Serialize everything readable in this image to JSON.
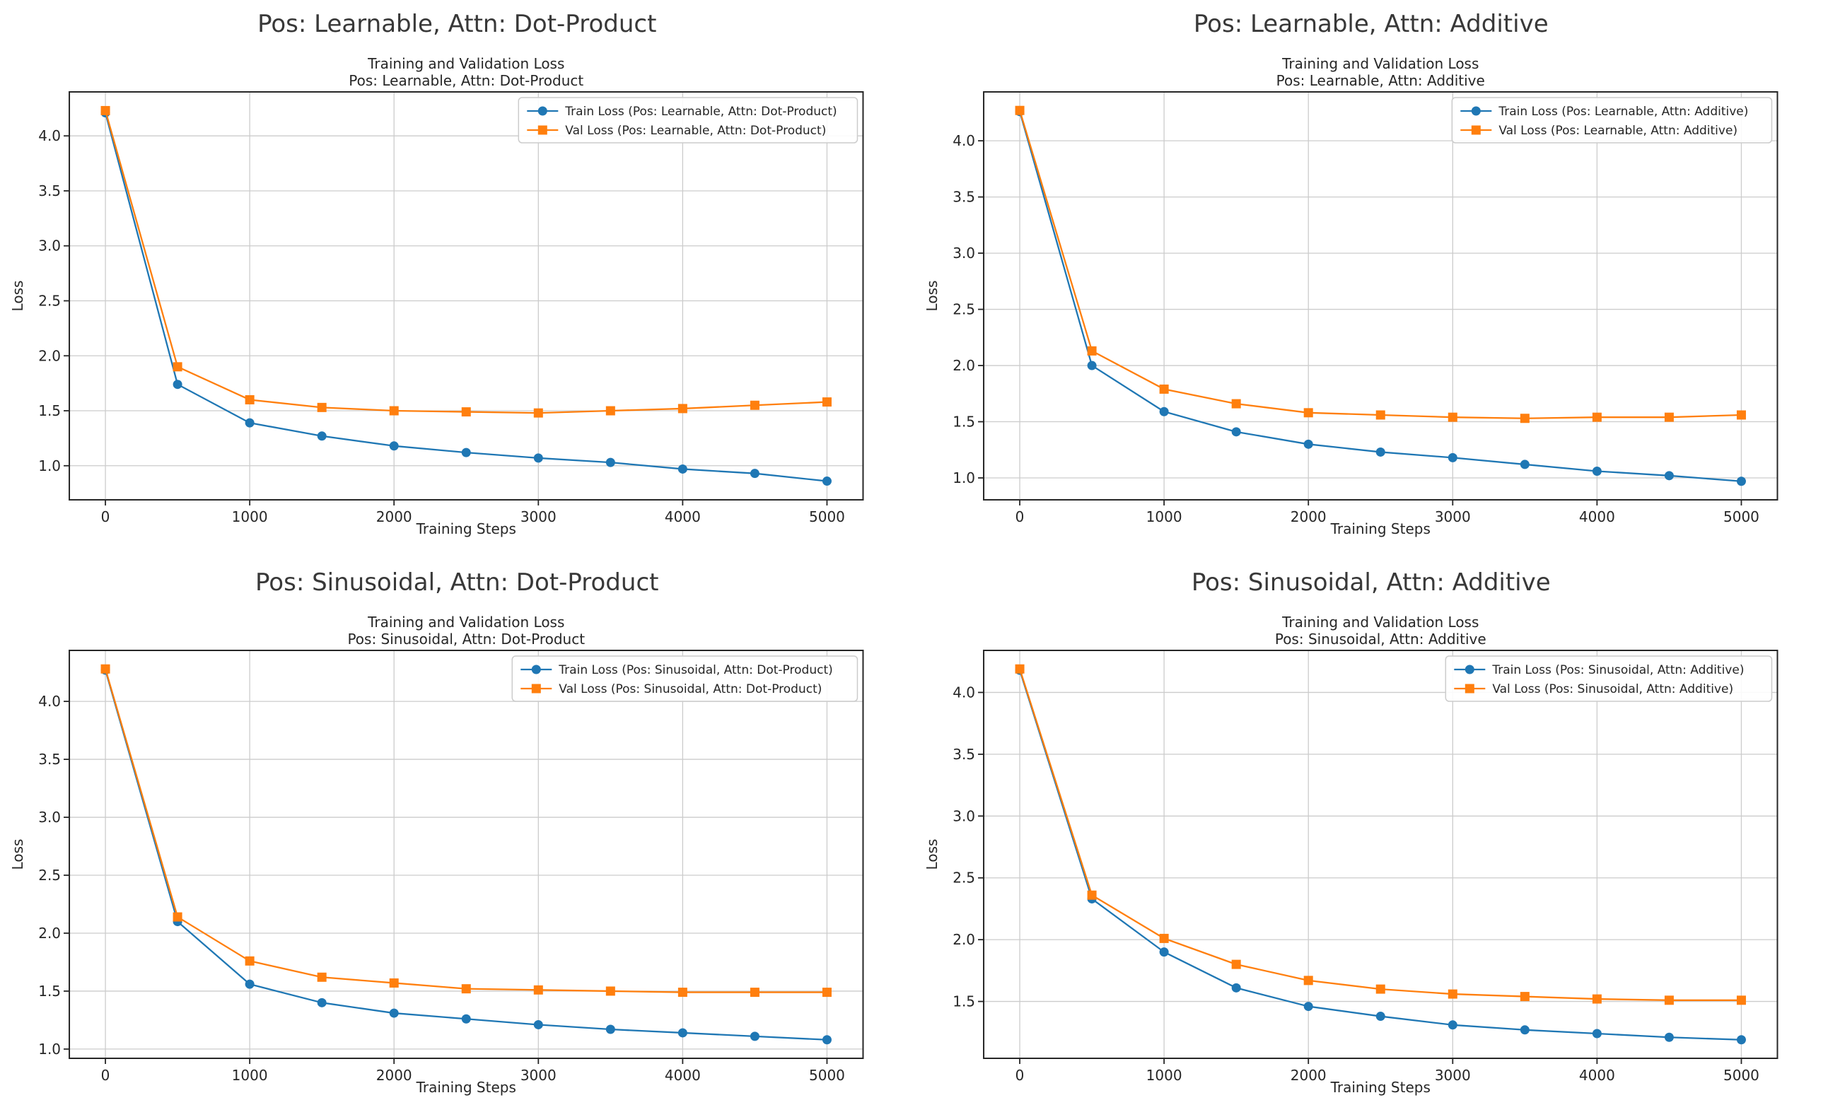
{
  "page": {
    "background": "#ffffff"
  },
  "colors": {
    "train_blue": "#1f77b4",
    "val_orange": "#ff7f0e",
    "grid_line": "#cccccc",
    "spine": "#262626",
    "text": "#262626",
    "suptitle_text": "#383838",
    "legend_border": "#cccccc",
    "legend_bg": "#ffffff"
  },
  "chart_data": [
    {
      "type": "line",
      "suptitle": "Pos: Learnable, Attn: Dot-Product",
      "axes_title": [
        "Training and Validation Loss",
        "Pos: Learnable, Attn: Dot-Product"
      ],
      "xlabel": "Training Steps",
      "ylabel": "Loss",
      "x": [
        0,
        500,
        1000,
        1500,
        2000,
        2500,
        3000,
        3500,
        4000,
        4500,
        5000
      ],
      "xticks": [
        0,
        1000,
        2000,
        3000,
        4000,
        5000
      ],
      "yticks": [
        1.0,
        1.5,
        2.0,
        2.5,
        3.0,
        3.5,
        4.0
      ],
      "xlim": [
        -250,
        5250
      ],
      "ylim": [
        0.69,
        4.4
      ],
      "grid": true,
      "legend_position": "upper right",
      "series": [
        {
          "name": "Train Loss (Pos: Learnable, Attn: Dot-Product)",
          "color": "#1f77b4",
          "marker": "circle",
          "values": [
            4.21,
            1.74,
            1.39,
            1.27,
            1.18,
            1.12,
            1.07,
            1.03,
            0.97,
            0.93,
            0.86
          ]
        },
        {
          "name": "Val Loss (Pos: Learnable, Attn: Dot-Product)",
          "color": "#ff7f0e",
          "marker": "square",
          "values": [
            4.23,
            1.9,
            1.6,
            1.53,
            1.5,
            1.49,
            1.48,
            1.5,
            1.52,
            1.55,
            1.58
          ]
        }
      ]
    },
    {
      "type": "line",
      "suptitle": "Pos: Learnable, Attn: Additive",
      "axes_title": [
        "Training and Validation Loss",
        "Pos: Learnable, Attn: Additive"
      ],
      "xlabel": "Training Steps",
      "ylabel": "Loss",
      "x": [
        0,
        500,
        1000,
        1500,
        2000,
        2500,
        3000,
        3500,
        4000,
        4500,
        5000
      ],
      "xticks": [
        0,
        1000,
        2000,
        3000,
        4000,
        5000
      ],
      "yticks": [
        1.0,
        1.5,
        2.0,
        2.5,
        3.0,
        3.5,
        4.0
      ],
      "xlim": [
        -250,
        5250
      ],
      "ylim": [
        0.805,
        4.435
      ],
      "grid": true,
      "legend_position": "upper right",
      "series": [
        {
          "name": "Train Loss (Pos: Learnable, Attn: Additive)",
          "color": "#1f77b4",
          "marker": "circle",
          "values": [
            4.26,
            2.0,
            1.59,
            1.41,
            1.3,
            1.23,
            1.18,
            1.12,
            1.06,
            1.02,
            0.97
          ]
        },
        {
          "name": "Val Loss (Pos: Learnable, Attn: Additive)",
          "color": "#ff7f0e",
          "marker": "square",
          "values": [
            4.27,
            2.13,
            1.79,
            1.66,
            1.58,
            1.56,
            1.54,
            1.53,
            1.54,
            1.54,
            1.56
          ]
        }
      ]
    },
    {
      "type": "line",
      "suptitle": "Pos: Sinusoidal, Attn: Dot-Product",
      "axes_title": [
        "Training and Validation Loss",
        "Pos: Sinusoidal, Attn: Dot-Product"
      ],
      "xlabel": "Training Steps",
      "ylabel": "Loss",
      "x": [
        0,
        500,
        1000,
        1500,
        2000,
        2500,
        3000,
        3500,
        4000,
        4500,
        5000
      ],
      "xticks": [
        0,
        1000,
        2000,
        3000,
        4000,
        5000
      ],
      "yticks": [
        1.0,
        1.5,
        2.0,
        2.5,
        3.0,
        3.5,
        4.0
      ],
      "xlim": [
        -250,
        5250
      ],
      "ylim": [
        0.92,
        4.44
      ],
      "grid": true,
      "legend_position": "upper right",
      "series": [
        {
          "name": "Train Loss (Pos: Sinusoidal, Attn: Dot-Product)",
          "color": "#1f77b4",
          "marker": "circle",
          "values": [
            4.27,
            2.1,
            1.56,
            1.4,
            1.31,
            1.26,
            1.21,
            1.17,
            1.14,
            1.11,
            1.08
          ]
        },
        {
          "name": "Val Loss (Pos: Sinusoidal, Attn: Dot-Product)",
          "color": "#ff7f0e",
          "marker": "square",
          "values": [
            4.28,
            2.14,
            1.76,
            1.62,
            1.57,
            1.52,
            1.51,
            1.5,
            1.49,
            1.49,
            1.49
          ]
        }
      ]
    },
    {
      "type": "line",
      "suptitle": "Pos: Sinusoidal, Attn: Additive",
      "axes_title": [
        "Training and Validation Loss",
        "Pos: Sinusoidal, Attn: Additive"
      ],
      "xlabel": "Training Steps",
      "ylabel": "Loss",
      "x": [
        0,
        500,
        1000,
        1500,
        2000,
        2500,
        3000,
        3500,
        4000,
        4500,
        5000
      ],
      "xticks": [
        0,
        1000,
        2000,
        3000,
        4000,
        5000
      ],
      "yticks": [
        1.5,
        2.0,
        2.5,
        3.0,
        3.5,
        4.0
      ],
      "xlim": [
        -250,
        5250
      ],
      "ylim": [
        1.04,
        4.34
      ],
      "grid": true,
      "legend_position": "upper right",
      "series": [
        {
          "name": "Train Loss (Pos: Sinusoidal, Attn: Additive)",
          "color": "#1f77b4",
          "marker": "circle",
          "values": [
            4.18,
            2.33,
            1.9,
            1.61,
            1.46,
            1.38,
            1.31,
            1.27,
            1.24,
            1.21,
            1.19
          ]
        },
        {
          "name": "Val Loss (Pos: Sinusoidal, Attn: Additive)",
          "color": "#ff7f0e",
          "marker": "square",
          "values": [
            4.19,
            2.36,
            2.01,
            1.8,
            1.67,
            1.6,
            1.56,
            1.54,
            1.52,
            1.51,
            1.51
          ]
        }
      ]
    }
  ]
}
